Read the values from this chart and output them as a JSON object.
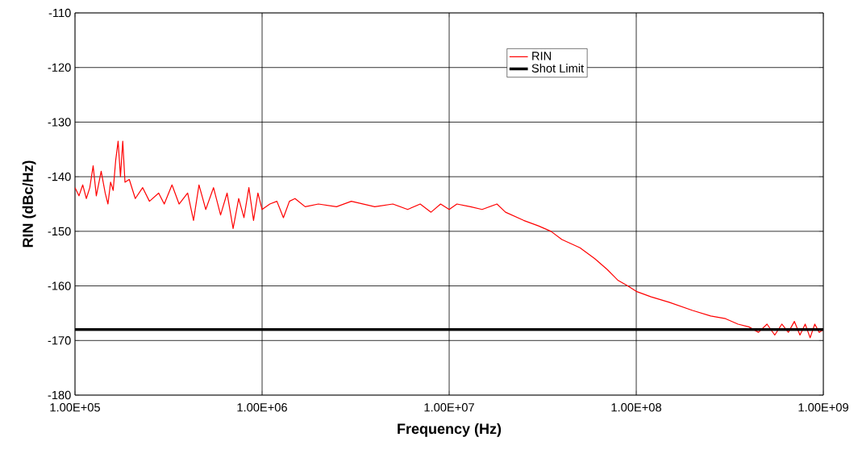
{
  "chart_data": {
    "type": "line",
    "xlabel": "Frequency (Hz)",
    "ylabel": "RIN (dBc/Hz)",
    "log": "x",
    "grid": true,
    "legend": "top right",
    "marker": "none",
    "line_style": "solid",
    "xlim": [
      100000,
      1000000000
    ],
    "ylim": [
      -180,
      -110
    ],
    "xticks": [
      {
        "value": 100000,
        "label": "1.00E+05"
      },
      {
        "value": 1000000,
        "label": "1.00E+06"
      },
      {
        "value": 10000000,
        "label": "1.00E+07"
      },
      {
        "value": 100000000,
        "label": "1.00E+08"
      },
      {
        "value": 1000000000,
        "label": "1.00E+09"
      }
    ],
    "yticks": [
      -180,
      -170,
      -160,
      -150,
      -140,
      -130,
      -120,
      -110
    ],
    "series": [
      {
        "name": "RIN",
        "color": "#ff0000",
        "x": [
          100000,
          105000,
          110000,
          115000,
          120000,
          125000,
          130000,
          138000,
          145000,
          150000,
          155000,
          160000,
          165000,
          170000,
          175000,
          180000,
          185000,
          195000,
          210000,
          230000,
          250000,
          280000,
          300000,
          330000,
          360000,
          400000,
          430000,
          460000,
          500000,
          550000,
          600000,
          650000,
          700000,
          750000,
          800000,
          850000,
          900000,
          950000,
          1000000,
          1100000,
          1200000,
          1300000,
          1400000,
          1500000,
          1700000,
          2000000,
          2500000,
          3000000,
          4000000,
          5000000,
          6000000,
          7000000,
          8000000,
          9000000,
          10000000,
          11000000,
          13000000,
          15000000,
          18000000,
          20000000,
          25000000,
          30000000,
          35000000,
          40000000,
          50000000,
          60000000,
          70000000,
          80000000,
          90000000,
          100000000,
          120000000,
          150000000,
          200000000,
          250000000,
          300000000,
          350000000,
          400000000,
          450000000,
          500000000,
          550000000,
          600000000,
          650000000,
          700000000,
          750000000,
          800000000,
          850000000,
          900000000,
          950000000,
          1000000000
        ],
        "values": [
          -142,
          -143.5,
          -141.5,
          -144,
          -142,
          -138,
          -143.5,
          -139,
          -143,
          -145,
          -141,
          -142.5,
          -137,
          -133.5,
          -140,
          -133.5,
          -141,
          -140.5,
          -144,
          -142,
          -144.5,
          -143,
          -145,
          -141.5,
          -145,
          -143,
          -148,
          -141.5,
          -146,
          -142,
          -147,
          -143,
          -149.5,
          -144,
          -147.5,
          -142,
          -148,
          -143,
          -146,
          -145,
          -144.5,
          -147.5,
          -144.5,
          -144,
          -145.5,
          -145,
          -145.5,
          -144.5,
          -145.5,
          -145,
          -146,
          -145,
          -146.5,
          -145,
          -146,
          -145,
          -145.5,
          -146,
          -145,
          -146.5,
          -148,
          -149,
          -150,
          -151.5,
          -153,
          -155,
          -157,
          -159,
          -160,
          -161,
          -162,
          -163,
          -164.5,
          -165.5,
          -166,
          -167,
          -167.5,
          -168.5,
          -167,
          -169,
          -167,
          -168.5,
          -166.5,
          -169,
          -167,
          -169.5,
          -167,
          -168.5,
          -168
        ]
      },
      {
        "name": "Shot Limit",
        "color": "#000000",
        "x": [
          100000,
          1000000000
        ],
        "values": [
          -168,
          -168
        ]
      }
    ]
  }
}
